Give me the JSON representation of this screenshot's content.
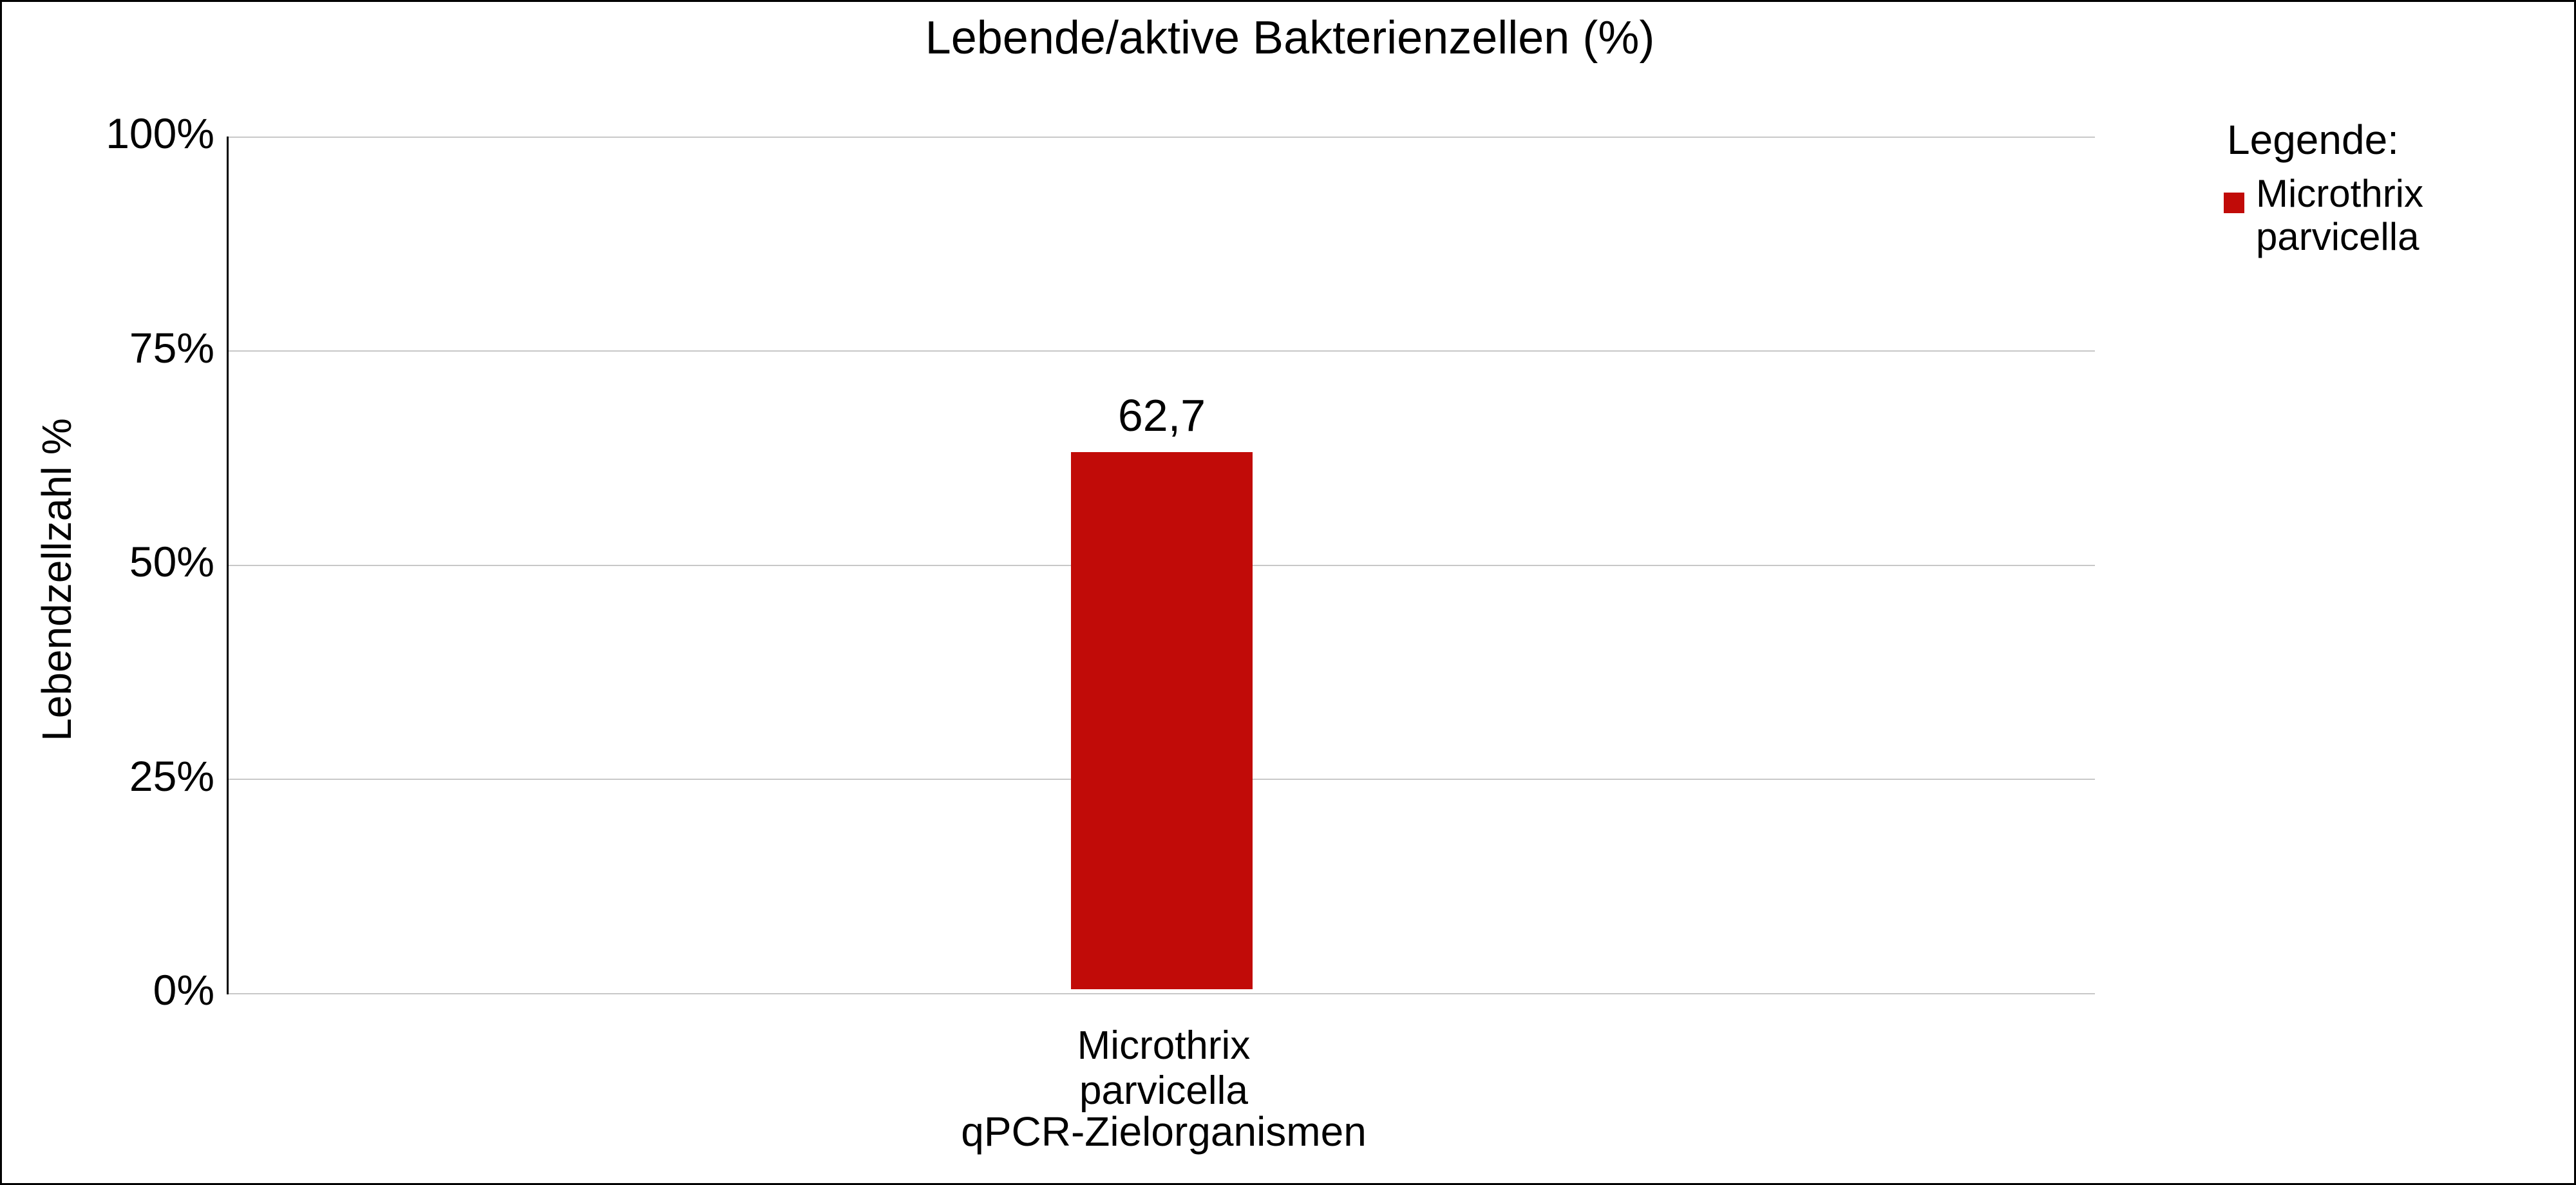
{
  "chart_data": {
    "type": "bar",
    "title": "Lebende/aktive Bakterienzellen (%)",
    "xlabel": "qPCR-Zielorganismen",
    "ylabel": "Lebendzellzahl %",
    "categories": [
      "Microthrix parvicella"
    ],
    "category_lines": [
      [
        "Microthrix",
        "parvicella"
      ]
    ],
    "values": [
      62.7
    ],
    "value_labels": [
      "62,7"
    ],
    "bar_color": "#c10b08",
    "ylim": [
      0,
      100
    ],
    "yticks": [
      "0%",
      "25%",
      "50%",
      "75%",
      "100%"
    ],
    "grid": "horizontal",
    "background_color": "#ffffff",
    "gridline_color": "#c8c8c8",
    "legend": {
      "title": "Legende:",
      "position": "right",
      "entries": [
        {
          "label": "Microthrix parvicella",
          "label_lines": [
            "Microthrix",
            "parvicella"
          ],
          "color": "#c10b08"
        }
      ]
    }
  }
}
